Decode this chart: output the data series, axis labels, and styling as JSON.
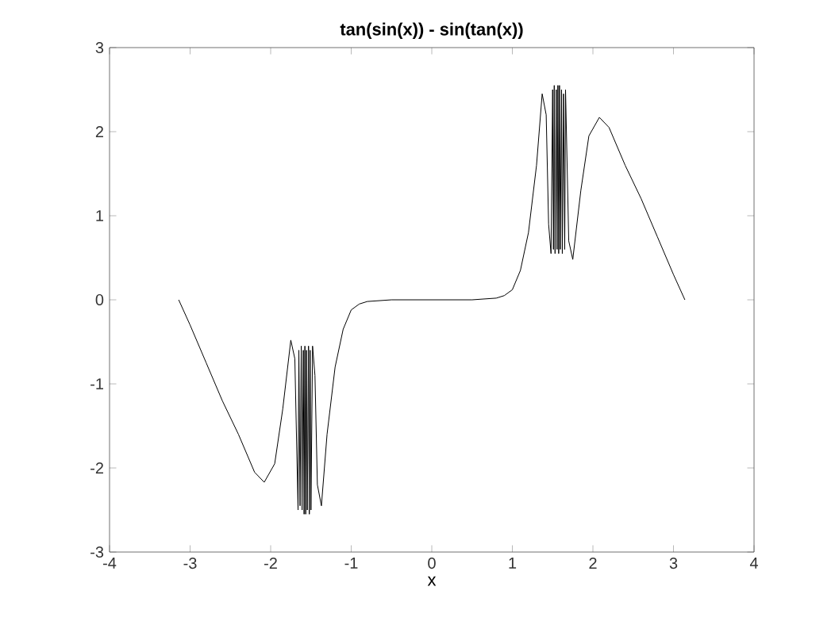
{
  "chart_data": {
    "type": "line",
    "title": "tan(sin(x)) - sin(tan(x))",
    "xlabel": "x",
    "xlim": [
      -4,
      4
    ],
    "ylim": [
      -3,
      3
    ],
    "xticks": [
      -4,
      -3,
      -2,
      -1,
      0,
      1,
      2,
      3,
      4
    ],
    "yticks": [
      -3,
      -2,
      -1,
      0,
      1,
      2,
      3
    ],
    "grid": false,
    "marker": "none",
    "line_style": "solid",
    "series": [
      {
        "color": "#000000",
        "x": [
          -3.1416,
          -3.0,
          -2.8,
          -2.6,
          -2.4,
          -2.2,
          -2.08,
          -1.95,
          -1.85,
          -1.75,
          -1.7,
          -1.66,
          -1.65,
          -1.635,
          -1.62,
          -1.61,
          -1.595,
          -1.585,
          -1.575,
          -1.565,
          -1.555,
          -1.545,
          -1.53,
          -1.52,
          -1.51,
          -1.5,
          -1.48,
          -1.45,
          -1.42,
          -1.37,
          -1.3,
          -1.2,
          -1.1,
          -1.0,
          -0.9,
          -0.8,
          -0.5,
          0,
          0.5,
          0.8,
          0.9,
          1.0,
          1.1,
          1.2,
          1.3,
          1.37,
          1.42,
          1.45,
          1.48,
          1.5,
          1.51,
          1.52,
          1.53,
          1.545,
          1.555,
          1.565,
          1.575,
          1.585,
          1.595,
          1.61,
          1.62,
          1.635,
          1.65,
          1.66,
          1.7,
          1.75,
          1.85,
          1.95,
          2.08,
          2.2,
          2.4,
          2.6,
          2.8,
          3.0,
          3.1416
        ],
        "values": [
          0,
          -0.3,
          -0.75,
          -1.2,
          -1.6,
          -2.05,
          -2.17,
          -1.95,
          -1.3,
          -0.48,
          -0.7,
          -2.5,
          -0.6,
          -2.45,
          -0.55,
          -2.5,
          -0.6,
          -2.55,
          -0.55,
          -2.55,
          -0.6,
          -2.5,
          -0.55,
          -2.55,
          -0.6,
          -2.5,
          -0.55,
          -0.9,
          -2.2,
          -2.45,
          -1.6,
          -0.8,
          -0.35,
          -0.12,
          -0.05,
          -0.02,
          0,
          0,
          0,
          0.02,
          0.05,
          0.12,
          0.35,
          0.8,
          1.6,
          2.45,
          2.2,
          0.9,
          0.55,
          2.5,
          0.6,
          2.55,
          0.55,
          2.5,
          0.6,
          2.55,
          0.55,
          2.55,
          0.6,
          2.5,
          0.55,
          2.45,
          0.6,
          2.5,
          0.7,
          0.48,
          1.3,
          1.95,
          2.17,
          2.05,
          1.6,
          1.2,
          0.75,
          0.3,
          0
        ]
      }
    ]
  }
}
